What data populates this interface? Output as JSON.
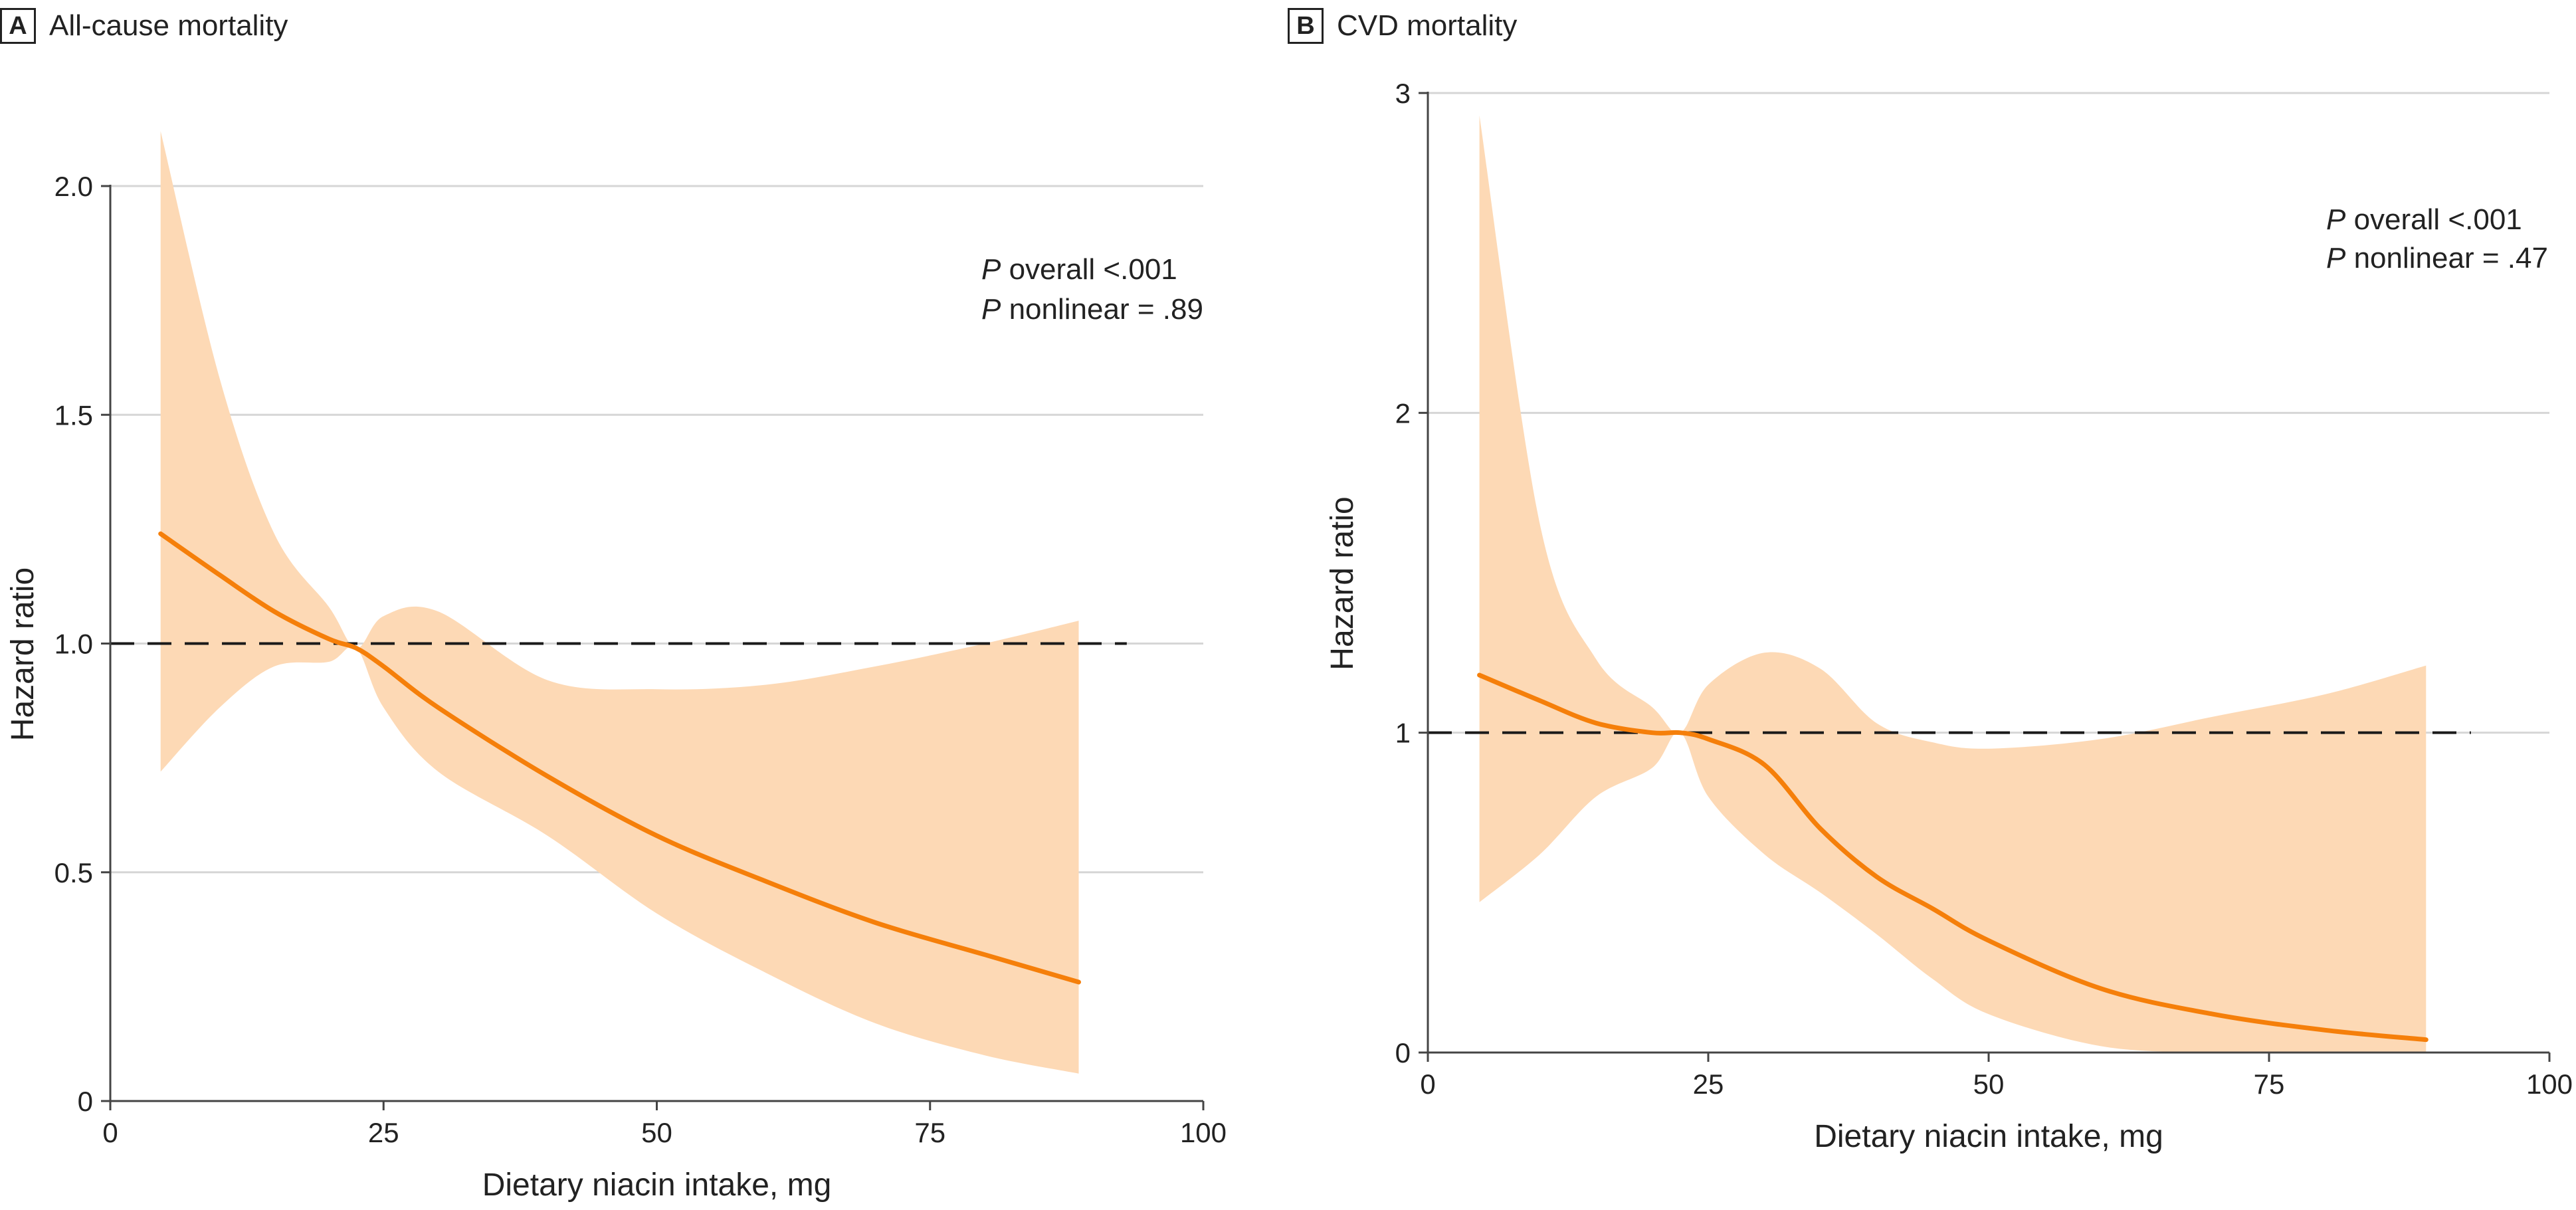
{
  "colors": {
    "curve": "#f57f0a",
    "band": "#fdd9b5",
    "grid": "#d6d6d6",
    "axis": "#444444",
    "reference": "#1a1a1a"
  },
  "chart_data": [
    {
      "panel_label": "A",
      "type": "line",
      "title": "All-cause mortality",
      "xlabel": "Dietary niacin intake, mg",
      "ylabel": "Hazard ratio",
      "xlim": [
        0,
        100
      ],
      "ylim": [
        0,
        2.0
      ],
      "xticks": [
        0,
        25,
        50,
        75,
        100
      ],
      "yticks": [
        0,
        0.5,
        1.0,
        1.5,
        2.0
      ],
      "xtick_labels": [
        "0",
        "25",
        "50",
        "75",
        "100"
      ],
      "ytick_labels": [
        "0",
        "0.5",
        "1.0",
        "1.5",
        "2.0"
      ],
      "grid": "horizontal",
      "reference_line": {
        "y": 1.0,
        "style": "dashed",
        "x_range": [
          0,
          93
        ]
      },
      "annotation": {
        "line1_italic": "P",
        "line1_rest": " overall <.001",
        "line2_italic": "P",
        "line2_rest": " nonlinear = .89"
      },
      "series": [
        {
          "x": [
            4.6,
            10,
            15,
            20,
            22.5,
            25,
            30,
            40,
            50,
            60,
            70,
            80,
            88.6
          ],
          "y": [
            1.24,
            1.15,
            1.07,
            1.01,
            0.99,
            0.95,
            0.86,
            0.71,
            0.58,
            0.48,
            0.39,
            0.32,
            0.26
          ],
          "lower": [
            0.72,
            0.86,
            0.95,
            0.96,
            0.99,
            0.86,
            0.72,
            0.58,
            0.41,
            0.28,
            0.17,
            0.1,
            0.06
          ],
          "upper": [
            2.12,
            1.58,
            1.24,
            1.08,
            0.99,
            1.06,
            1.07,
            0.92,
            0.9,
            0.91,
            0.95,
            1.0,
            1.05
          ]
        }
      ]
    },
    {
      "panel_label": "B",
      "type": "line",
      "title": "CVD mortality",
      "xlabel": "Dietary niacin intake, mg",
      "ylabel": "Hazard ratio",
      "xlim": [
        0,
        100
      ],
      "ylim": [
        0,
        3
      ],
      "xticks": [
        0,
        25,
        50,
        75,
        100
      ],
      "yticks": [
        0,
        1,
        2,
        3
      ],
      "xtick_labels": [
        "0",
        "25",
        "50",
        "75",
        "100"
      ],
      "ytick_labels": [
        "0",
        "1",
        "2",
        "3"
      ],
      "grid": "horizontal",
      "reference_line": {
        "y": 1,
        "style": "dashed",
        "x_range": [
          0,
          93
        ]
      },
      "annotation": {
        "line1_italic": "P",
        "line1_rest": " overall <.001",
        "line2_italic": "P",
        "line2_rest": " nonlinear = .47"
      },
      "series": [
        {
          "x": [
            4.6,
            10,
            15,
            20,
            22.5,
            25,
            30,
            35,
            40,
            45,
            50,
            60,
            70,
            80,
            89
          ],
          "y": [
            1.18,
            1.1,
            1.03,
            1.0,
            1.0,
            0.98,
            0.9,
            0.7,
            0.55,
            0.45,
            0.35,
            0.2,
            0.12,
            0.07,
            0.04
          ],
          "lower": [
            0.47,
            0.62,
            0.8,
            0.89,
            1.0,
            0.8,
            0.62,
            0.5,
            0.37,
            0.23,
            0.12,
            0.02,
            0.0,
            0.0,
            0.0
          ],
          "upper": [
            2.93,
            1.65,
            1.23,
            1.08,
            1.0,
            1.15,
            1.25,
            1.2,
            1.03,
            0.97,
            0.95,
            0.98,
            1.05,
            1.12,
            1.21
          ]
        }
      ]
    }
  ]
}
